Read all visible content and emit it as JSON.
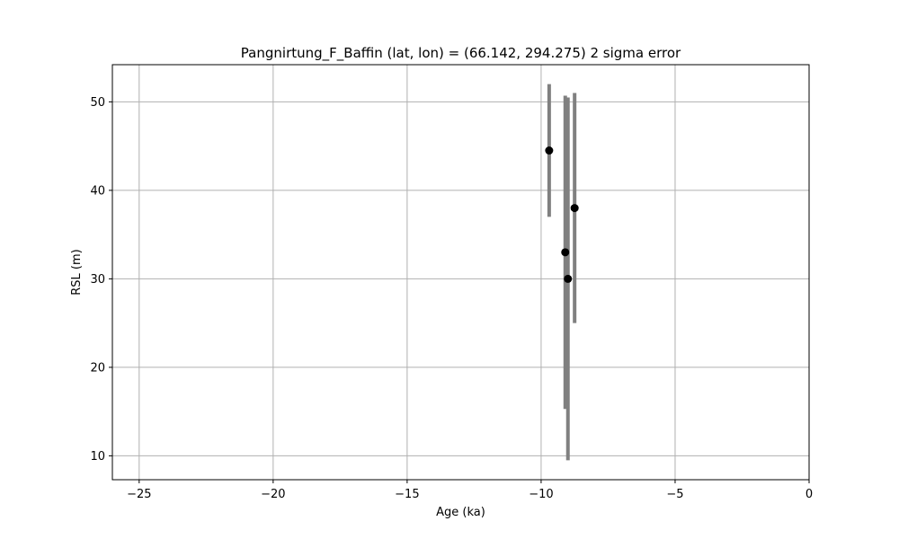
{
  "chart_data": {
    "type": "scatter",
    "title": "Pangnirtung_F_Baffin (lat, lon) = (66.142, 294.275)  2 sigma error",
    "xlabel": "Age (ka)",
    "ylabel": "RSL (m)",
    "xlim": [
      -26,
      0
    ],
    "ylim": [
      7.3,
      54.2
    ],
    "xticks": [
      -25,
      -20,
      -15,
      -10,
      -5,
      0
    ],
    "xtick_labels": [
      "−25",
      "−20",
      "−15",
      "−10",
      "−5",
      "0"
    ],
    "yticks": [
      10,
      20,
      30,
      40,
      50
    ],
    "ytick_labels": [
      "10",
      "20",
      "30",
      "40",
      "50"
    ],
    "grid": true,
    "marker_color": "#000000",
    "errorbar_color": "#808080",
    "points": [
      {
        "x": -9.7,
        "y": 44.5,
        "ylow": 37.0,
        "yhigh": 52.0
      },
      {
        "x": -8.75,
        "y": 38.0,
        "ylow": 25.0,
        "yhigh": 51.0
      },
      {
        "x": -9.1,
        "y": 33.0,
        "ylow": 15.3,
        "yhigh": 50.7
      },
      {
        "x": -9.0,
        "y": 30.0,
        "ylow": 9.5,
        "yhigh": 50.5
      }
    ]
  }
}
